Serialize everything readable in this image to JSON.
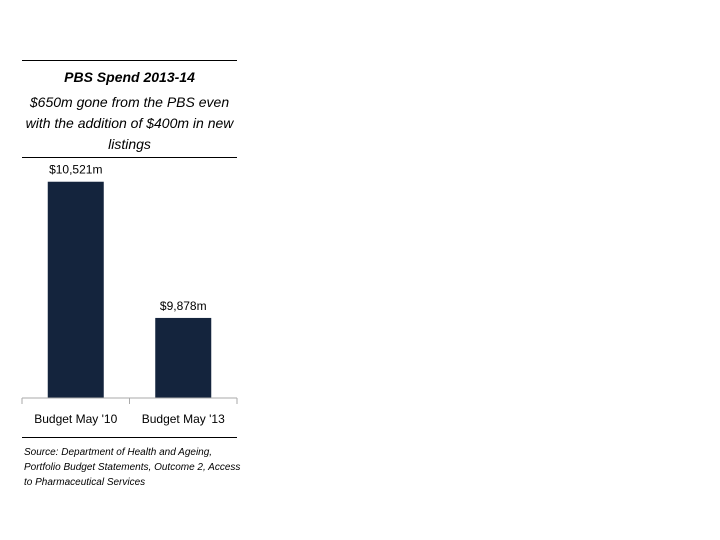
{
  "chart_data": {
    "type": "bar",
    "title": "PBS Spend 2013-14",
    "subtitle": "$650m gone from the PBS even with the addition of $400m in new listings",
    "categories": [
      "Budget May '10",
      "Budget May '13"
    ],
    "values": [
      10521,
      9878
    ],
    "data_labels": [
      "$10,521m",
      "$9,878m"
    ],
    "ylim": [
      9500,
      10600
    ],
    "unit": "$m",
    "grid": false,
    "bar_color": "#14243d",
    "source": "Source: Department of Health and Ageing, Portfolio Budget Statements, Outcome 2, Access to Pharmaceutical Services"
  }
}
